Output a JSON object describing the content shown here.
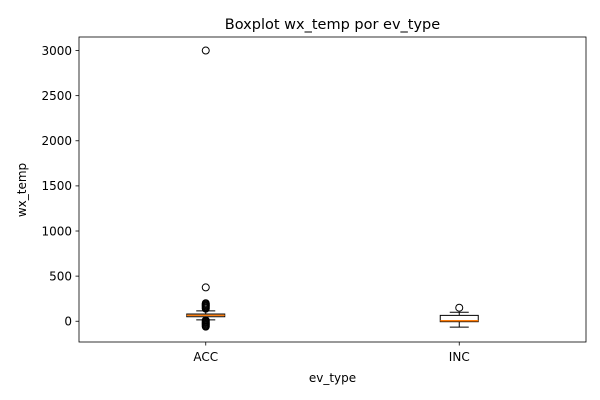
{
  "chart_data": {
    "type": "boxplot",
    "title": "Boxplot wx_temp por ev_type",
    "xlabel": "ev_type",
    "ylabel": "wx_temp",
    "ylim": [
      -230,
      3150
    ],
    "yticks": [
      0,
      500,
      1000,
      1500,
      2000,
      2500,
      3000
    ],
    "grid": false,
    "colors": {
      "box": "#000000",
      "median": "#ff7f0e",
      "axes": "#000000"
    },
    "categories": [
      "ACC",
      "INC"
    ],
    "boxes": [
      {
        "category": "ACC",
        "whisker_low": 15,
        "q1": 50,
        "median": 65,
        "q3": 80,
        "whisker_high": 115,
        "fliers": [
          3000,
          375,
          200,
          190,
          180,
          170,
          160,
          150,
          140,
          10,
          0,
          -10,
          -20,
          -30,
          -40,
          -50,
          -60
        ]
      },
      {
        "category": "INC",
        "whisker_low": -65,
        "q1": -5,
        "median": 5,
        "q3": 65,
        "whisker_high": 100,
        "fliers": [
          150
        ]
      }
    ]
  }
}
